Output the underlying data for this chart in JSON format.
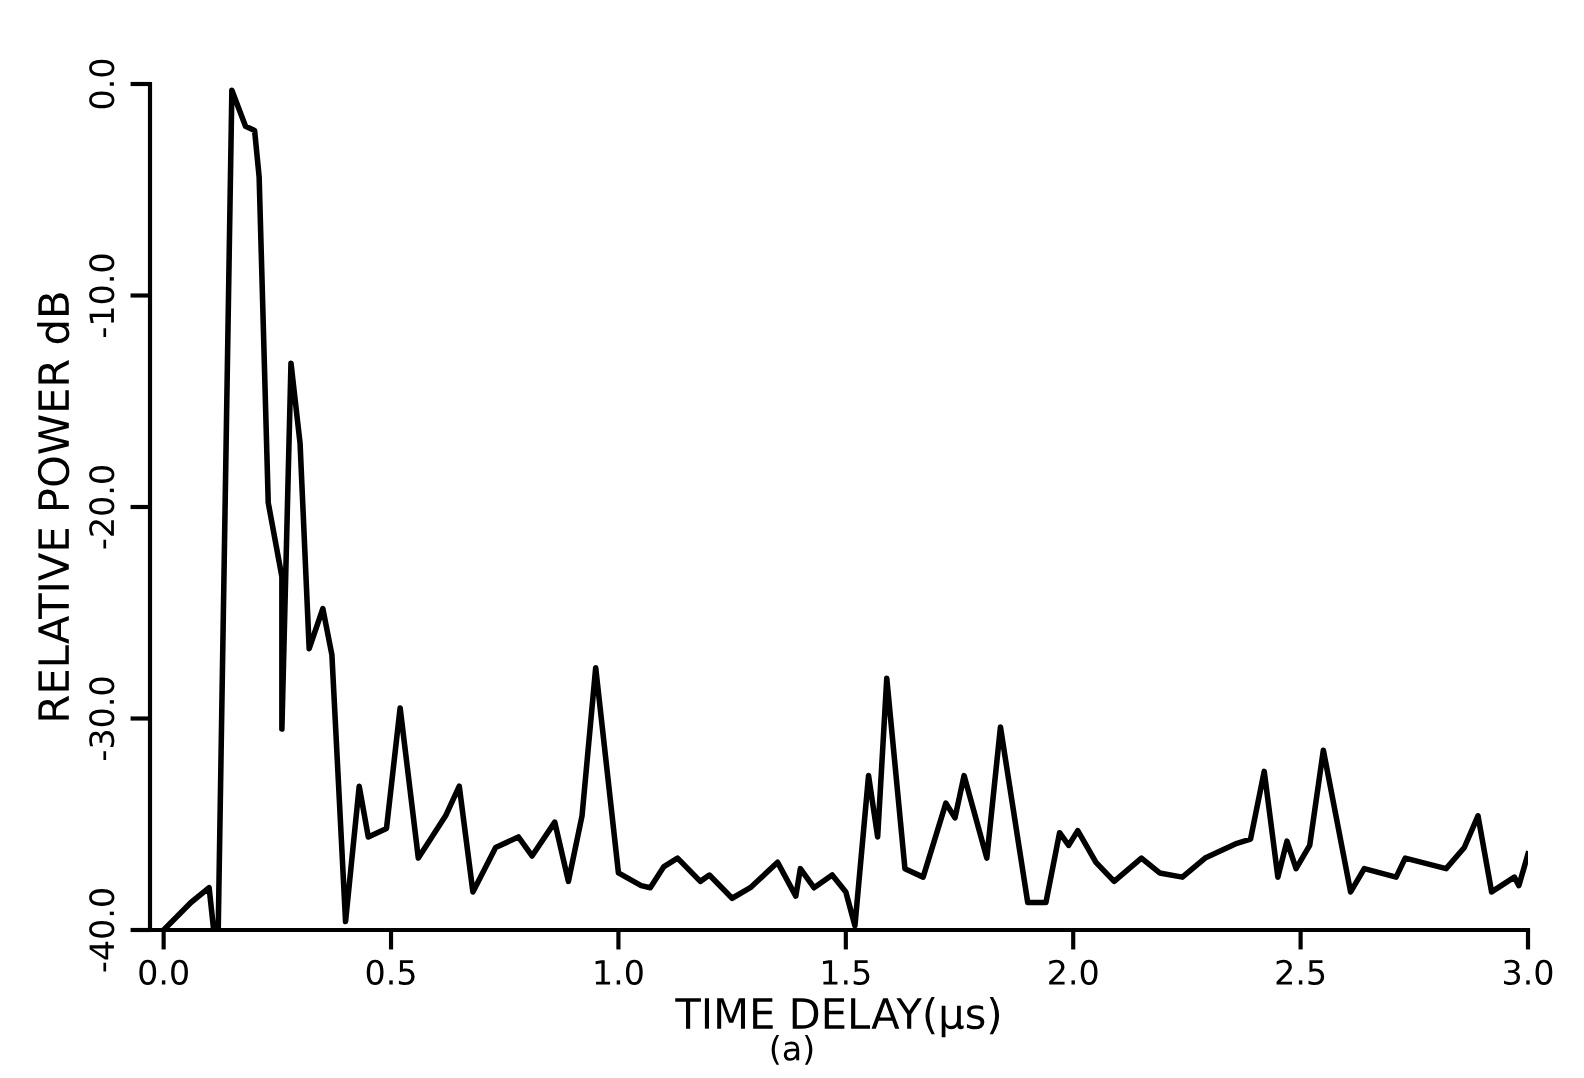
{
  "chart_data": {
    "type": "line",
    "xlabel": "TIME DELAY(µs)",
    "ylabel": "RELATIVE POWER dB",
    "color": "#000000",
    "x": [
      0.0,
      0.06,
      0.1,
      0.11,
      0.12,
      0.15,
      0.18,
      0.2,
      0.21,
      0.23,
      0.26,
      0.26,
      0.28,
      0.3,
      0.32,
      0.35,
      0.37,
      0.4,
      0.43,
      0.45,
      0.49,
      0.52,
      0.56,
      0.62,
      0.65,
      0.68,
      0.73,
      0.78,
      0.81,
      0.86,
      0.89,
      0.92,
      0.95,
      1.0,
      1.05,
      1.07,
      1.1,
      1.13,
      1.18,
      1.2,
      1.25,
      1.29,
      1.35,
      1.39,
      1.4,
      1.43,
      1.47,
      1.5,
      1.52,
      1.55,
      1.57,
      1.59,
      1.63,
      1.67,
      1.72,
      1.74,
      1.76,
      1.81,
      1.84,
      1.9,
      1.94,
      1.97,
      1.99,
      2.01,
      2.05,
      2.09,
      2.15,
      2.19,
      2.24,
      2.29,
      2.36,
      2.39,
      2.42,
      2.45,
      2.47,
      2.49,
      2.52,
      2.55,
      2.61,
      2.64,
      2.71,
      2.73,
      2.82,
      2.86,
      2.89,
      2.92,
      2.97,
      2.98,
      3.0
    ],
    "values": [
      -40,
      -38.7,
      -38.0,
      -40,
      -40,
      -0.3,
      -2.0,
      -2.2,
      -4.4,
      -19.8,
      -23.3,
      -30.5,
      -13.2,
      -17.0,
      -26.7,
      -24.8,
      -27.0,
      -39.6,
      -33.2,
      -35.6,
      -35.2,
      -29.5,
      -36.6,
      -34.6,
      -33.2,
      -38.2,
      -36.1,
      -35.6,
      -36.5,
      -34.9,
      -37.7,
      -34.6,
      -27.6,
      -37.3,
      -37.9,
      -38.0,
      -37.0,
      -36.6,
      -37.7,
      -37.4,
      -38.5,
      -38.0,
      -36.8,
      -38.4,
      -37.1,
      -38.0,
      -37.4,
      -38.2,
      -39.8,
      -32.7,
      -35.6,
      -28.1,
      -37.1,
      -37.5,
      -34.0,
      -34.7,
      -32.7,
      -36.6,
      -30.4,
      -38.7,
      -38.7,
      -35.4,
      -36.0,
      -35.3,
      -36.8,
      -37.7,
      -36.6,
      -37.3,
      -37.5,
      -36.6,
      -35.9,
      -35.7,
      -32.5,
      -37.5,
      -35.8,
      -37.1,
      -36.0,
      -31.5,
      -38.2,
      -37.1,
      -37.5,
      -36.6,
      -37.1,
      -36.1,
      -34.6,
      -38.2,
      -37.5,
      -37.9,
      -36.4
    ],
    "xlim": [
      -0.03,
      3.0
    ],
    "ylim": [
      -40,
      0
    ],
    "xticks": [
      {
        "value": 0,
        "label": "0.0"
      },
      {
        "value": 0.5,
        "label": "0.5"
      },
      {
        "value": 1,
        "label": "1.0"
      },
      {
        "value": 1.5,
        "label": "1.5"
      },
      {
        "value": 2,
        "label": "2.0"
      },
      {
        "value": 2.5,
        "label": "2.5"
      },
      {
        "value": 3,
        "label": "3.0"
      }
    ],
    "yticks": [
      {
        "value": 0,
        "label": "0.0"
      },
      {
        "value": -10,
        "label": "-10.0"
      },
      {
        "value": -20,
        "label": "-20.0"
      },
      {
        "value": -30,
        "label": "-30.0"
      },
      {
        "value": -40,
        "label": "-40.0"
      }
    ],
    "annotations": [
      "(a)"
    ]
  }
}
